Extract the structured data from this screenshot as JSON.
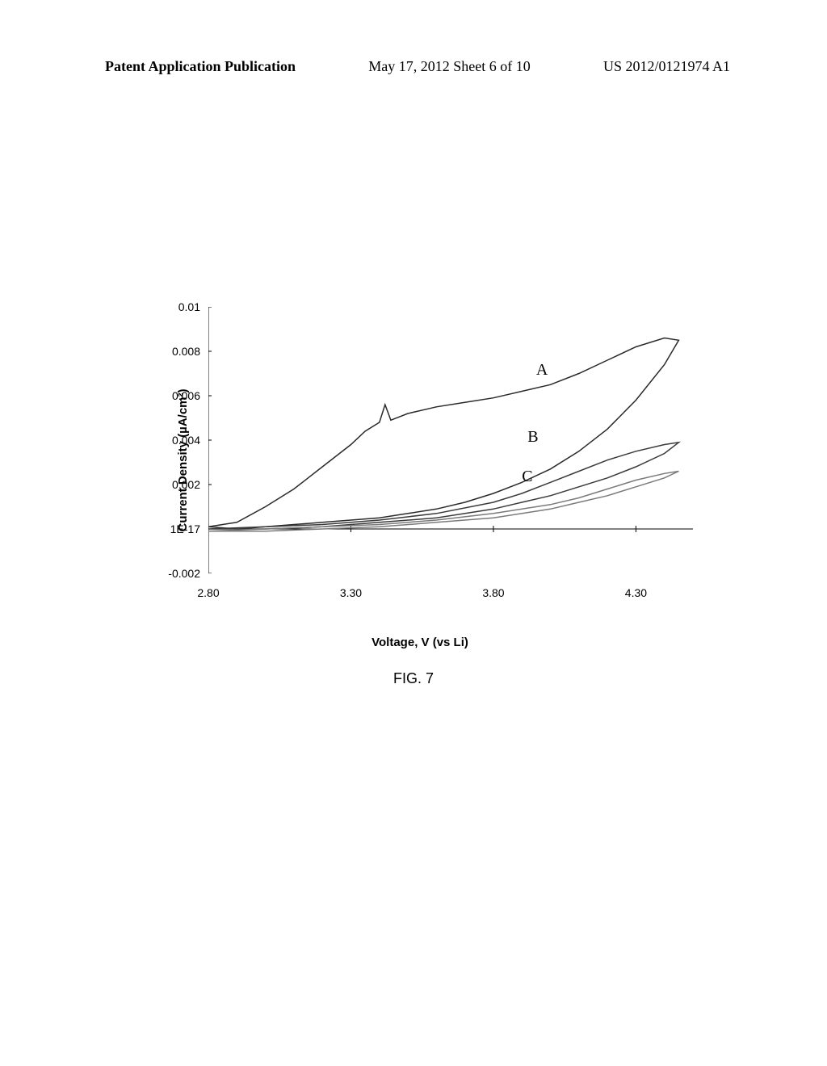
{
  "header": {
    "left": "Patent Application Publication",
    "center": "May 17, 2012  Sheet 6 of 10",
    "right": "US 2012/0121974 A1"
  },
  "figure": {
    "caption": "FIG. 7"
  },
  "chart": {
    "type": "line",
    "xlabel": "Voltage, V (vs Li)",
    "ylabel": "Current Density (µA/cm²)",
    "xlim": [
      2.8,
      4.5
    ],
    "ylim": [
      -0.002,
      0.01
    ],
    "xticks": [
      {
        "value": 2.8,
        "label": "2.80"
      },
      {
        "value": 3.3,
        "label": "3.30"
      },
      {
        "value": 3.8,
        "label": "3.80"
      },
      {
        "value": 4.3,
        "label": "4.30"
      }
    ],
    "yticks": [
      {
        "value": -0.002,
        "label": "-0.002"
      },
      {
        "value": 0,
        "label": "1E-17"
      },
      {
        "value": 0.002,
        "label": "0.002"
      },
      {
        "value": 0.004,
        "label": "0.004"
      },
      {
        "value": 0.006,
        "label": "0.006"
      },
      {
        "value": 0.008,
        "label": "0.008"
      },
      {
        "value": 0.01,
        "label": "0.01"
      }
    ],
    "axis_color": "#000000",
    "background_color": "#ffffff",
    "line_width": 1.5,
    "series": [
      {
        "name": "A",
        "label_pos": {
          "x": 3.95,
          "y": 0.0072
        },
        "color": "#2a2a2a",
        "upper_path": [
          {
            "x": 2.8,
            "y": 0.0001
          },
          {
            "x": 2.9,
            "y": 0.0003
          },
          {
            "x": 3.0,
            "y": 0.001
          },
          {
            "x": 3.1,
            "y": 0.0018
          },
          {
            "x": 3.2,
            "y": 0.0028
          },
          {
            "x": 3.3,
            "y": 0.0038
          },
          {
            "x": 3.35,
            "y": 0.0044
          },
          {
            "x": 3.4,
            "y": 0.0048
          },
          {
            "x": 3.42,
            "y": 0.0056
          },
          {
            "x": 3.44,
            "y": 0.0049
          },
          {
            "x": 3.5,
            "y": 0.0052
          },
          {
            "x": 3.6,
            "y": 0.0055
          },
          {
            "x": 3.7,
            "y": 0.0057
          },
          {
            "x": 3.8,
            "y": 0.0059
          },
          {
            "x": 3.9,
            "y": 0.0062
          },
          {
            "x": 4.0,
            "y": 0.0065
          },
          {
            "x": 4.1,
            "y": 0.007
          },
          {
            "x": 4.2,
            "y": 0.0076
          },
          {
            "x": 4.3,
            "y": 0.0082
          },
          {
            "x": 4.4,
            "y": 0.0086
          },
          {
            "x": 4.45,
            "y": 0.0085
          }
        ],
        "lower_path": [
          {
            "x": 4.45,
            "y": 0.0085
          },
          {
            "x": 4.4,
            "y": 0.0074
          },
          {
            "x": 4.3,
            "y": 0.0058
          },
          {
            "x": 4.2,
            "y": 0.0045
          },
          {
            "x": 4.1,
            "y": 0.0035
          },
          {
            "x": 4.0,
            "y": 0.0027
          },
          {
            "x": 3.9,
            "y": 0.0021
          },
          {
            "x": 3.8,
            "y": 0.0016
          },
          {
            "x": 3.7,
            "y": 0.0012
          },
          {
            "x": 3.6,
            "y": 0.0009
          },
          {
            "x": 3.5,
            "y": 0.0007
          },
          {
            "x": 3.4,
            "y": 0.0005
          },
          {
            "x": 3.3,
            "y": 0.0004
          },
          {
            "x": 3.2,
            "y": 0.0003
          },
          {
            "x": 3.1,
            "y": 0.0002
          },
          {
            "x": 3.0,
            "y": 0.0001
          },
          {
            "x": 2.9,
            "y": 0.0
          },
          {
            "x": 2.8,
            "y": 0.0001
          }
        ]
      },
      {
        "name": "B",
        "label_pos": {
          "x": 3.92,
          "y": 0.0042
        },
        "color": "#3a3a3a",
        "upper_path": [
          {
            "x": 2.8,
            "y": 0.0
          },
          {
            "x": 3.0,
            "y": 0.0001
          },
          {
            "x": 3.2,
            "y": 0.0002
          },
          {
            "x": 3.4,
            "y": 0.0004
          },
          {
            "x": 3.6,
            "y": 0.0007
          },
          {
            "x": 3.8,
            "y": 0.0012
          },
          {
            "x": 3.9,
            "y": 0.0016
          },
          {
            "x": 4.0,
            "y": 0.0021
          },
          {
            "x": 4.1,
            "y": 0.0026
          },
          {
            "x": 4.2,
            "y": 0.0031
          },
          {
            "x": 4.3,
            "y": 0.0035
          },
          {
            "x": 4.4,
            "y": 0.0038
          },
          {
            "x": 4.45,
            "y": 0.0039
          }
        ],
        "lower_path": [
          {
            "x": 4.45,
            "y": 0.0039
          },
          {
            "x": 4.4,
            "y": 0.0034
          },
          {
            "x": 4.3,
            "y": 0.0028
          },
          {
            "x": 4.2,
            "y": 0.0023
          },
          {
            "x": 4.1,
            "y": 0.0019
          },
          {
            "x": 4.0,
            "y": 0.0015
          },
          {
            "x": 3.9,
            "y": 0.0012
          },
          {
            "x": 3.8,
            "y": 0.0009
          },
          {
            "x": 3.6,
            "y": 0.0005
          },
          {
            "x": 3.4,
            "y": 0.0003
          },
          {
            "x": 3.2,
            "y": 0.0001
          },
          {
            "x": 3.0,
            "y": 0.0
          },
          {
            "x": 2.8,
            "y": 0.0
          }
        ]
      },
      {
        "name": "C",
        "label_pos": {
          "x": 3.9,
          "y": 0.0024
        },
        "color": "#7a7a7a",
        "upper_path": [
          {
            "x": 2.8,
            "y": -0.0001
          },
          {
            "x": 3.0,
            "y": 0.0
          },
          {
            "x": 3.2,
            "y": 0.0001
          },
          {
            "x": 3.4,
            "y": 0.0002
          },
          {
            "x": 3.6,
            "y": 0.0004
          },
          {
            "x": 3.8,
            "y": 0.0007
          },
          {
            "x": 4.0,
            "y": 0.0011
          },
          {
            "x": 4.1,
            "y": 0.0014
          },
          {
            "x": 4.2,
            "y": 0.0018
          },
          {
            "x": 4.3,
            "y": 0.0022
          },
          {
            "x": 4.4,
            "y": 0.0025
          },
          {
            "x": 4.45,
            "y": 0.0026
          }
        ],
        "lower_path": [
          {
            "x": 4.45,
            "y": 0.0026
          },
          {
            "x": 4.4,
            "y": 0.0023
          },
          {
            "x": 4.3,
            "y": 0.0019
          },
          {
            "x": 4.2,
            "y": 0.0015
          },
          {
            "x": 4.1,
            "y": 0.0012
          },
          {
            "x": 4.0,
            "y": 0.0009
          },
          {
            "x": 3.8,
            "y": 0.0005
          },
          {
            "x": 3.6,
            "y": 0.0003
          },
          {
            "x": 3.4,
            "y": 0.0001
          },
          {
            "x": 3.2,
            "y": 0.0
          },
          {
            "x": 3.0,
            "y": -0.0001
          },
          {
            "x": 2.8,
            "y": -0.0001
          }
        ]
      }
    ]
  }
}
